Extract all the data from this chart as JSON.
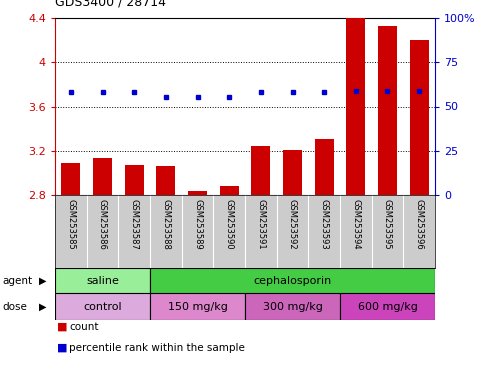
{
  "title": "GDS3400 / 28714",
  "samples": [
    "GSM253585",
    "GSM253586",
    "GSM253587",
    "GSM253588",
    "GSM253589",
    "GSM253590",
    "GSM253591",
    "GSM253592",
    "GSM253593",
    "GSM253594",
    "GSM253595",
    "GSM253596"
  ],
  "counts": [
    3.09,
    3.13,
    3.07,
    3.06,
    2.84,
    2.88,
    3.24,
    3.21,
    3.31,
    4.4,
    4.33,
    4.2
  ],
  "percentile_ranks": [
    3.73,
    3.73,
    3.73,
    3.69,
    3.69,
    3.69,
    3.73,
    3.73,
    3.73,
    3.74,
    3.74,
    3.74
  ],
  "ylim_left": [
    2.8,
    4.4
  ],
  "ylim_right": [
    0,
    100
  ],
  "yticks_left": [
    2.8,
    3.2,
    3.6,
    4.0,
    4.4
  ],
  "yticks_right": [
    0,
    25,
    50,
    75,
    100
  ],
  "ytick_labels_left": [
    "2.8",
    "3.2",
    "3.6",
    "4",
    "4.4"
  ],
  "ytick_labels_right": [
    "0",
    "25",
    "50",
    "75",
    "100%"
  ],
  "bar_color": "#cc0000",
  "dot_color": "#0000cc",
  "grid_color": "#000000",
  "bg_color": "#ffffff",
  "agent_groups": [
    {
      "label": "saline",
      "start": 0,
      "end": 2,
      "color": "#99ee99"
    },
    {
      "label": "cephalosporin",
      "start": 3,
      "end": 11,
      "color": "#44cc44"
    }
  ],
  "dose_groups": [
    {
      "label": "control",
      "start": 0,
      "end": 2,
      "color": "#ddaadd"
    },
    {
      "label": "150 mg/kg",
      "start": 3,
      "end": 5,
      "color": "#dd88cc"
    },
    {
      "label": "300 mg/kg",
      "start": 6,
      "end": 8,
      "color": "#cc66bb"
    },
    {
      "label": "600 mg/kg",
      "start": 9,
      "end": 11,
      "color": "#cc44bb"
    }
  ],
  "label_bg_color": "#cccccc",
  "legend_count_color": "#cc0000",
  "legend_pct_color": "#0000cc"
}
